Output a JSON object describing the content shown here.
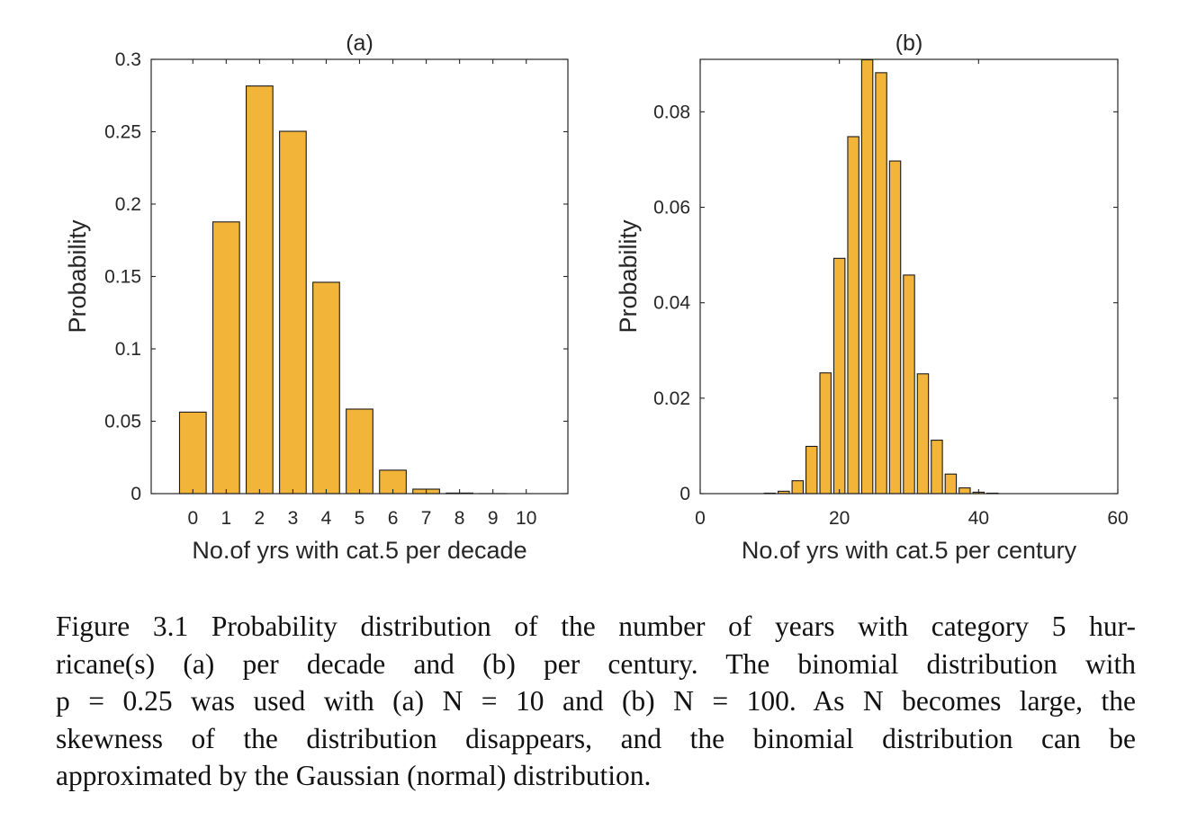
{
  "chart_data": [
    {
      "type": "bar",
      "title": "(a)",
      "xlabel": "No.of yrs with cat.5 per decade",
      "ylabel": "Probability",
      "x": [
        0,
        1,
        2,
        3,
        4,
        5,
        6,
        7,
        8,
        9,
        10
      ],
      "values": [
        0.0563,
        0.1877,
        0.2816,
        0.2503,
        0.146,
        0.0584,
        0.0162,
        0.0031,
        0.0004,
        3e-05,
        1e-06
      ],
      "xticks": [
        "0",
        "1",
        "2",
        "3",
        "4",
        "5",
        "6",
        "7",
        "8",
        "9",
        "10"
      ],
      "xlim": [
        -1.25,
        11.25
      ],
      "ylim": [
        0,
        0.3
      ],
      "yticks": [
        "0",
        "0.05",
        "0.1",
        "0.15",
        "0.2",
        "0.25",
        "0.3"
      ],
      "grid": false,
      "bar_color": "#F3B43A"
    },
    {
      "type": "bar",
      "title": "(b)",
      "xlabel": "No.of yrs with cat.5 per century",
      "ylabel": "Probability",
      "x": [
        0,
        2,
        4,
        6,
        8,
        10,
        12,
        14,
        16,
        18,
        20,
        22,
        24,
        26,
        28,
        30,
        32,
        34,
        36,
        38,
        40,
        42,
        44,
        46,
        48,
        50,
        52,
        54,
        56,
        58,
        60
      ],
      "values": [
        0,
        0,
        0,
        0,
        0,
        0.0001,
        0.0005,
        0.0027,
        0.0099,
        0.0253,
        0.0493,
        0.0748,
        0.0909,
        0.0882,
        0.0697,
        0.0458,
        0.0251,
        0.0112,
        0.0041,
        0.0012,
        0.0003,
        0.0001,
        0,
        0,
        0,
        0,
        0,
        0,
        0,
        0,
        0
      ],
      "xticks": [
        "0",
        "20",
        "40",
        "60"
      ],
      "xlim": [
        0,
        60
      ],
      "ylim": [
        0,
        0.091
      ],
      "yticks": [
        "0",
        "0.02",
        "0.04",
        "0.06",
        "0.08"
      ],
      "grid": false,
      "bar_color": "#F3B43A"
    }
  ],
  "caption": {
    "lines": [
      "Figure 3.1 Probability distribution of the number of years with category 5 hur-",
      "ricane(s) (a) per decade and (b) per century. The binomial distribution with",
      "p = 0.25 was used with (a) N = 10 and (b) N = 100. As N becomes large, the",
      "skewness of the distribution disappears, and the binomial distribution can be",
      "approximated by the Gaussian (normal) distribution."
    ]
  }
}
